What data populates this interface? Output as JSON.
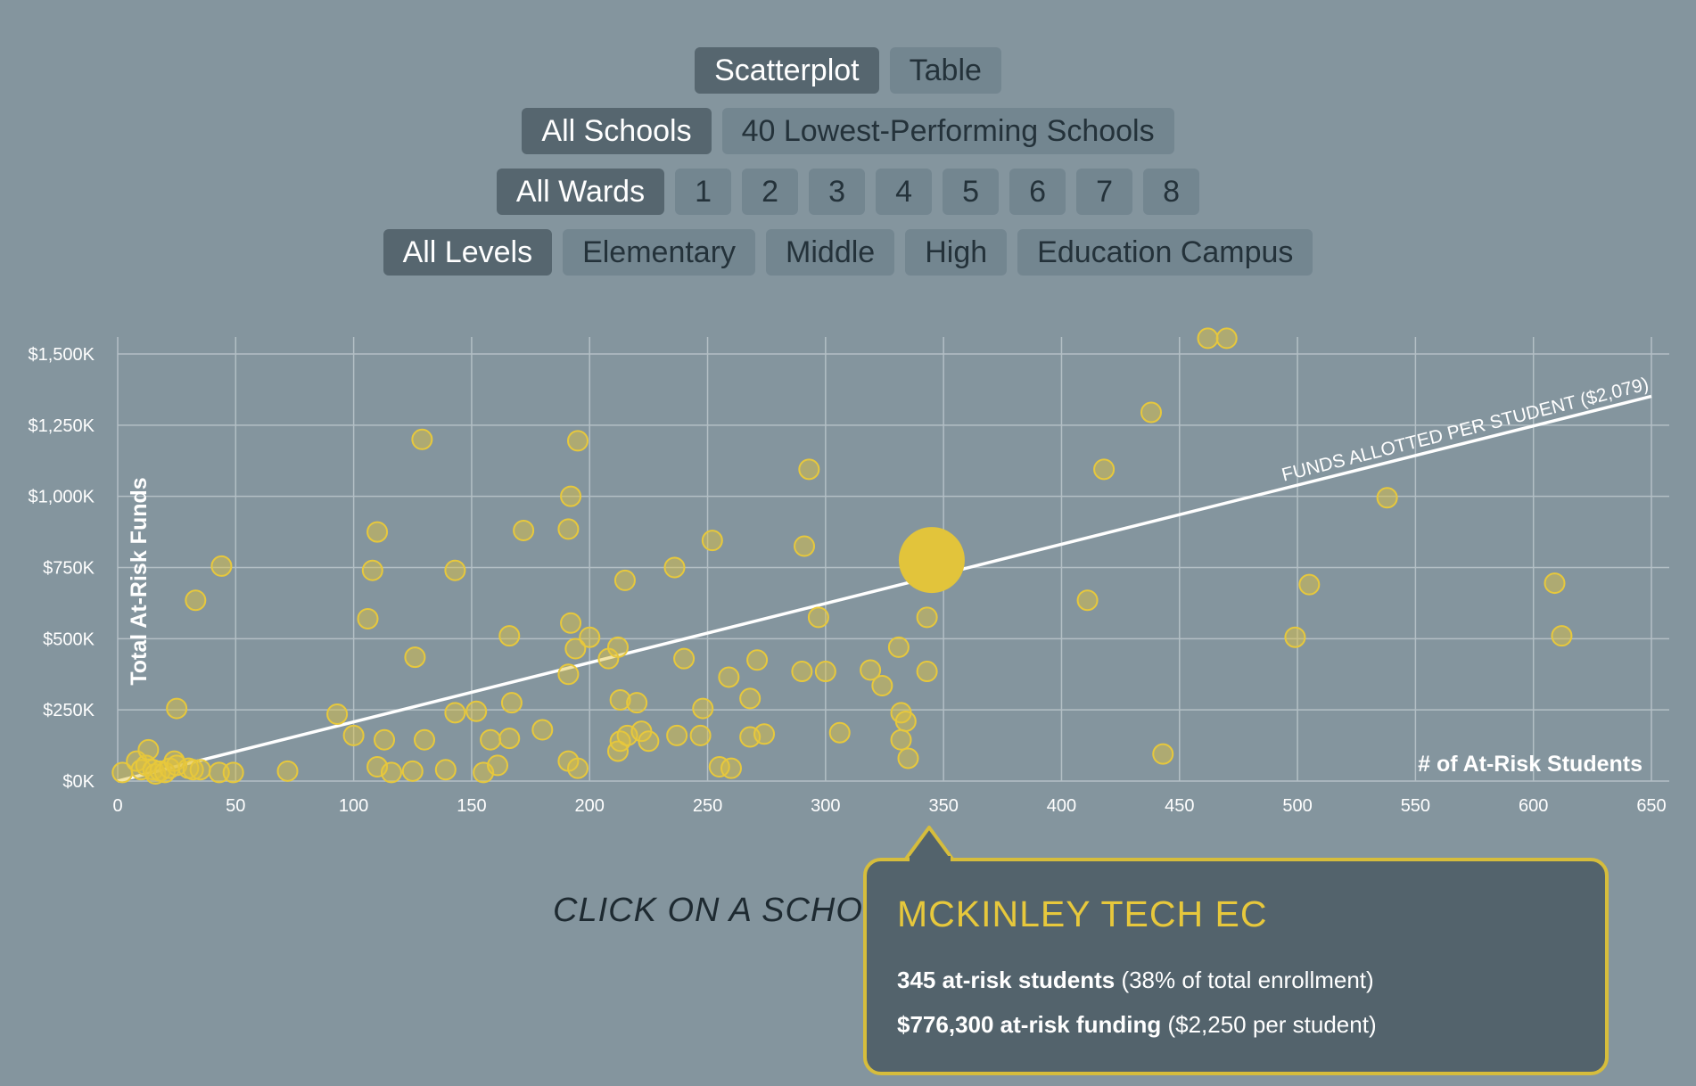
{
  "controls": {
    "view": [
      {
        "label": "Scatterplot",
        "active": true
      },
      {
        "label": "Table",
        "active": false
      }
    ],
    "schools": [
      {
        "label": "All Schools",
        "active": true
      },
      {
        "label": "40 Lowest-Performing Schools",
        "active": false
      }
    ],
    "wards": [
      {
        "label": "All Wards",
        "active": true
      },
      {
        "label": "1",
        "active": false
      },
      {
        "label": "2",
        "active": false
      },
      {
        "label": "3",
        "active": false
      },
      {
        "label": "4",
        "active": false
      },
      {
        "label": "5",
        "active": false
      },
      {
        "label": "6",
        "active": false
      },
      {
        "label": "7",
        "active": false
      },
      {
        "label": "8",
        "active": false
      }
    ],
    "levels": [
      {
        "label": "All Levels",
        "active": true
      },
      {
        "label": "Elementary",
        "active": false
      },
      {
        "label": "Middle",
        "active": false
      },
      {
        "label": "High",
        "active": false
      },
      {
        "label": "Education Campus",
        "active": false
      }
    ]
  },
  "chart_data": {
    "type": "scatter",
    "xlabel": "# of At-Risk Students",
    "ylabel": "Total At-Risk Funds",
    "xlim": [
      0,
      650
    ],
    "ylim": [
      0,
      1500
    ],
    "y_unit": "thousands of dollars",
    "x_ticks": [
      0,
      50,
      100,
      150,
      200,
      250,
      300,
      350,
      400,
      450,
      500,
      550,
      600,
      650
    ],
    "x_tick_labels": [
      "0",
      "50",
      "100",
      "150",
      "200",
      "250",
      "300",
      "350",
      "400",
      "450",
      "500",
      "550",
      "600",
      "650"
    ],
    "y_ticks": [
      0,
      250,
      500,
      750,
      1000,
      1250,
      1500
    ],
    "y_tick_labels": [
      "$0K",
      "$250K",
      "$500K",
      "$750K",
      "$1,000K",
      "$1,250K",
      "$1,500K"
    ],
    "grid": true,
    "reference_line": {
      "label": "FUNDS ALLOTTED PER STUDENT ($2,079)",
      "slope_dollars_per_student": 2079
    },
    "highlighted": {
      "x": 345,
      "y": 776.3
    },
    "points": [
      [
        2,
        30
      ],
      [
        8,
        70
      ],
      [
        10,
        40
      ],
      [
        12,
        55
      ],
      [
        13,
        110
      ],
      [
        15,
        40
      ],
      [
        16,
        25
      ],
      [
        18,
        35
      ],
      [
        20,
        30
      ],
      [
        22,
        45
      ],
      [
        24,
        70
      ],
      [
        25,
        55
      ],
      [
        30,
        45
      ],
      [
        32,
        40
      ],
      [
        35,
        40
      ],
      [
        25,
        255
      ],
      [
        33,
        635
      ],
      [
        44,
        755
      ],
      [
        43,
        30
      ],
      [
        49,
        30
      ],
      [
        72,
        35
      ],
      [
        93,
        235
      ],
      [
        100,
        160
      ],
      [
        106,
        570
      ],
      [
        108,
        740
      ],
      [
        110,
        875
      ],
      [
        110,
        50
      ],
      [
        113,
        145
      ],
      [
        116,
        30
      ],
      [
        125,
        35
      ],
      [
        126,
        435
      ],
      [
        129,
        1200
      ],
      [
        130,
        145
      ],
      [
        139,
        40
      ],
      [
        143,
        740
      ],
      [
        143,
        240
      ],
      [
        152,
        245
      ],
      [
        155,
        30
      ],
      [
        158,
        145
      ],
      [
        161,
        55
      ],
      [
        166,
        510
      ],
      [
        166,
        150
      ],
      [
        167,
        275
      ],
      [
        172,
        880
      ],
      [
        180,
        180
      ],
      [
        191,
        885
      ],
      [
        192,
        1000
      ],
      [
        192,
        555
      ],
      [
        191,
        375
      ],
      [
        191,
        70
      ],
      [
        194,
        465
      ],
      [
        195,
        45
      ],
      [
        195,
        1195
      ],
      [
        200,
        505
      ],
      [
        208,
        430
      ],
      [
        212,
        470
      ],
      [
        212,
        105
      ],
      [
        213,
        140
      ],
      [
        213,
        285
      ],
      [
        215,
        705
      ],
      [
        216,
        160
      ],
      [
        220,
        275
      ],
      [
        222,
        175
      ],
      [
        225,
        140
      ],
      [
        236,
        750
      ],
      [
        237,
        160
      ],
      [
        240,
        430
      ],
      [
        247,
        160
      ],
      [
        248,
        255
      ],
      [
        252,
        845
      ],
      [
        255,
        50
      ],
      [
        259,
        365
      ],
      [
        260,
        45
      ],
      [
        268,
        290
      ],
      [
        268,
        155
      ],
      [
        271,
        425
      ],
      [
        274,
        165
      ],
      [
        290,
        385
      ],
      [
        291,
        825
      ],
      [
        293,
        1095
      ],
      [
        297,
        575
      ],
      [
        300,
        385
      ],
      [
        306,
        170
      ],
      [
        319,
        390
      ],
      [
        324,
        335
      ],
      [
        331,
        470
      ],
      [
        332,
        240
      ],
      [
        332,
        145
      ],
      [
        334,
        210
      ],
      [
        335,
        80
      ],
      [
        343,
        575
      ],
      [
        343,
        385
      ],
      [
        411,
        635
      ],
      [
        418,
        1095
      ],
      [
        438,
        1295
      ],
      [
        443,
        95
      ],
      [
        462,
        1555
      ],
      [
        470,
        1555
      ],
      [
        499,
        505
      ],
      [
        505,
        690
      ],
      [
        538,
        995
      ],
      [
        609,
        695
      ],
      [
        612,
        510
      ]
    ]
  },
  "instruction": "CLICK ON A SCHOOL",
  "tooltip": {
    "title": "MCKINLEY TECH EC",
    "line1_bold": "345 at-risk students",
    "line1_rest": " (38% of total enrollment)",
    "line2_bold": "$776,300 at-risk funding",
    "line2_rest": " ($2,250 per student)"
  },
  "colors": {
    "background": "#84959e",
    "point": "#e2c43b",
    "button": "#738690",
    "button_active": "#56666f",
    "tooltip_bg": "#53636c",
    "tooltip_border": "#d6bd3c"
  }
}
